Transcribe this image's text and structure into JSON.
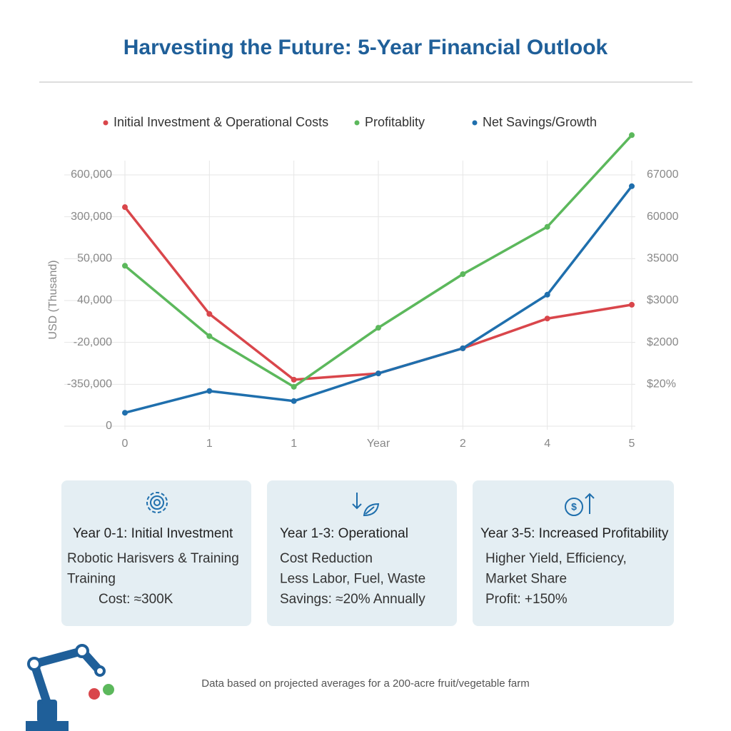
{
  "title": "Harvesting the Future: 5-Year Financial Outlook",
  "chart_data": {
    "type": "line",
    "y_label": "USD (Thusand)",
    "x_label": "Year",
    "categories": [
      "0",
      "1",
      "1",
      null,
      "2",
      "4",
      "5"
    ],
    "ylim": [
      0,
      6
    ],
    "yticks": [
      0,
      1,
      2,
      3,
      4,
      5,
      6
    ],
    "ytick_labels": [
      "0",
      "-350,000",
      "-20,000",
      "40,000",
      "50,000",
      "300,000",
      "600,000"
    ],
    "y2ticks": [
      1,
      2,
      3,
      4,
      5,
      6
    ],
    "y2tick_labels": [
      "$20%",
      "$2000",
      "$3000",
      "35000",
      "60000",
      "67000"
    ],
    "grid": true,
    "series": [
      {
        "name": "Initial Investment & Operational Costs",
        "color": "#d9464b",
        "values": [
          5.23,
          2.68,
          1.11,
          1.26,
          1.86,
          2.57,
          2.9
        ]
      },
      {
        "name": "Profitablity",
        "color": "#5cb85c",
        "values": [
          3.83,
          2.15,
          0.94,
          2.35,
          3.63,
          4.76,
          6.95
        ]
      },
      {
        "name": "Net Savings/Growth",
        "color": "#1f6fad",
        "values": [
          0.32,
          0.84,
          0.6,
          1.26,
          1.86,
          3.14,
          5.73
        ]
      }
    ]
  },
  "cards": [
    {
      "title": "Year 0-1: Initial Investment",
      "lines": [
        "Robotic Harisvers & Training",
        "Training",
        "Cost: ≈300K"
      ]
    },
    {
      "title": "Year 1-3: Operational",
      "lines": [
        "Cost Reduction",
        "Less Labor, Fuel, Waste",
        "Savings: ≈20% Annually"
      ]
    },
    {
      "title": "Year 3-5: Increased Profitability",
      "lines": [
        "Higher Yield, Efficiency,",
        "Market Share",
        "Profit: +150%"
      ]
    }
  ],
  "footnote": "Data based on projected averages for a 200-acre fruit/vegetable farm"
}
